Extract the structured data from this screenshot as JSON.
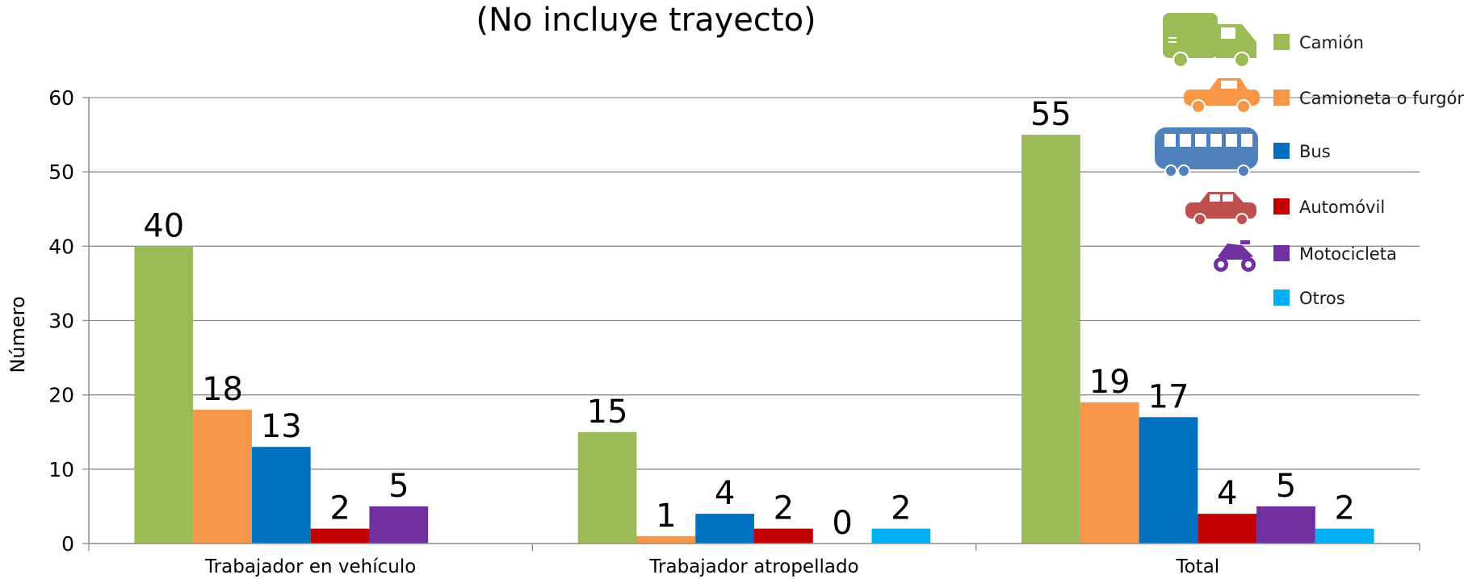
{
  "chart_data": {
    "type": "bar",
    "title": "(No incluye trayecto)",
    "ylabel": "Número",
    "xlabel": "",
    "ylim": [
      0,
      60
    ],
    "yticks": [
      0,
      10,
      20,
      30,
      40,
      50,
      60
    ],
    "grid": true,
    "legend_position": "top-right",
    "categories": [
      "Trabajador en vehículo",
      "Trabajador atropellado",
      "Total"
    ],
    "series": [
      {
        "name": "Camión",
        "color": "#9BBB59",
        "icon": "truck-icon",
        "values": [
          40,
          15,
          55
        ],
        "labels": [
          "40",
          "15",
          "55"
        ]
      },
      {
        "name": "Camioneta o furgón",
        "color": "#F79646",
        "icon": "pickup-truck-icon",
        "values": [
          18,
          1,
          19
        ],
        "labels": [
          "18",
          "1",
          "19"
        ]
      },
      {
        "name": "Bus",
        "color": "#0070C0",
        "icon": "bus-icon",
        "values": [
          13,
          4,
          17
        ],
        "labels": [
          "13",
          "4",
          "17"
        ]
      },
      {
        "name": "Automóvil",
        "color": "#C00000",
        "icon": "car-icon",
        "values": [
          2,
          2,
          4
        ],
        "labels": [
          "2",
          "2",
          "4"
        ]
      },
      {
        "name": "Motocicleta",
        "color": "#7030A0",
        "icon": "motorcycle-icon",
        "values": [
          5,
          0,
          5
        ],
        "labels": [
          "5",
          "0",
          "5"
        ]
      },
      {
        "name": "Otros",
        "color": "#00B0F0",
        "icon": "",
        "values": [
          null,
          2,
          2
        ],
        "labels": [
          "",
          "2",
          "2"
        ]
      }
    ]
  }
}
